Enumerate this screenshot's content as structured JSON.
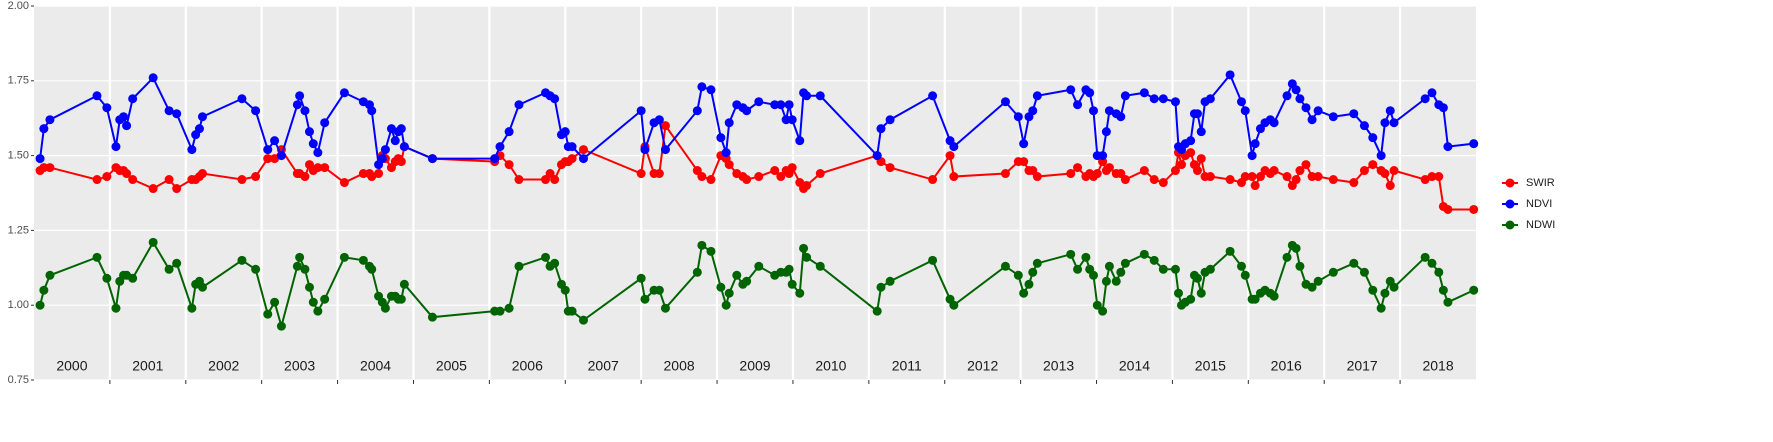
{
  "chart_data": {
    "type": "line",
    "x": [
      2000.08,
      2000.13,
      2000.21,
      2000.83,
      2000.96,
      2001.08,
      2001.13,
      2001.18,
      2001.22,
      2001.3,
      2001.57,
      2001.78,
      2001.88,
      2002.08,
      2002.13,
      2002.18,
      2002.22,
      2002.74,
      2002.92,
      2003.08,
      2003.17,
      2003.26,
      2003.47,
      2003.5,
      2003.57,
      2003.63,
      2003.68,
      2003.74,
      2003.83,
      2004.09,
      2004.34,
      2004.42,
      2004.45,
      2004.54,
      2004.59,
      2004.63,
      2004.71,
      2004.76,
      2004.8,
      2004.84,
      2004.88,
      2005.25,
      2006.07,
      2006.14,
      2006.26,
      2006.39,
      2006.74,
      2006.8,
      2006.86,
      2006.95,
      2007.0,
      2007.04,
      2007.09,
      2007.24,
      2008.0,
      2008.05,
      2008.17,
      2008.24,
      2008.32,
      2008.74,
      2008.8,
      2008.92,
      2009.05,
      2009.12,
      2009.16,
      2009.26,
      2009.34,
      2009.39,
      2009.55,
      2009.76,
      2009.84,
      2009.91,
      2009.95,
      2009.99,
      2010.09,
      2010.14,
      2010.18,
      2010.36,
      2011.11,
      2011.16,
      2011.28,
      2011.84,
      2012.07,
      2012.12,
      2012.8,
      2012.97,
      2013.04,
      2013.11,
      2013.16,
      2013.22,
      2013.66,
      2013.75,
      2013.86,
      2013.91,
      2013.96,
      2014.01,
      2014.08,
      2014.13,
      2014.17,
      2014.26,
      2014.32,
      2014.38,
      2014.63,
      2014.76,
      2014.88,
      2015.04,
      2015.08,
      2015.12,
      2015.17,
      2015.24,
      2015.29,
      2015.33,
      2015.38,
      2015.43,
      2015.5,
      2015.76,
      2015.91,
      2015.96,
      2016.05,
      2016.09,
      2016.16,
      2016.22,
      2016.29,
      2016.34,
      2016.51,
      2016.58,
      2016.63,
      2016.68,
      2016.76,
      2016.84,
      2016.92,
      2017.12,
      2017.39,
      2017.53,
      2017.64,
      2017.75,
      2017.8,
      2017.87,
      2017.92,
      2018.33,
      2018.42,
      2018.51,
      2018.57,
      2018.63,
      2018.97
    ],
    "series": [
      {
        "name": "SWIR",
        "color": "#ff0000",
        "values": [
          1.45,
          1.46,
          1.46,
          1.42,
          1.43,
          1.46,
          1.45,
          1.45,
          1.44,
          1.42,
          1.39,
          1.42,
          1.39,
          1.42,
          1.42,
          1.43,
          1.44,
          1.42,
          1.43,
          1.49,
          1.49,
          1.52,
          1.44,
          1.44,
          1.43,
          1.47,
          1.45,
          1.46,
          1.46,
          1.41,
          1.44,
          1.44,
          1.43,
          1.44,
          1.5,
          1.49,
          1.46,
          1.48,
          1.49,
          1.48,
          1.53,
          1.49,
          1.48,
          1.5,
          1.47,
          1.42,
          1.42,
          1.44,
          1.42,
          1.47,
          1.48,
          1.48,
          1.49,
          1.52,
          1.44,
          1.53,
          1.44,
          1.44,
          1.6,
          1.45,
          1.43,
          1.42,
          1.5,
          1.49,
          1.47,
          1.44,
          1.43,
          1.42,
          1.43,
          1.45,
          1.43,
          1.45,
          1.44,
          1.46,
          1.41,
          1.39,
          1.4,
          1.44,
          1.5,
          1.48,
          1.46,
          1.42,
          1.5,
          1.43,
          1.44,
          1.48,
          1.48,
          1.45,
          1.45,
          1.43,
          1.44,
          1.46,
          1.43,
          1.44,
          1.43,
          1.44,
          1.48,
          1.45,
          1.46,
          1.44,
          1.44,
          1.42,
          1.45,
          1.42,
          1.41,
          1.45,
          1.51,
          1.47,
          1.5,
          1.51,
          1.47,
          1.45,
          1.49,
          1.43,
          1.43,
          1.42,
          1.41,
          1.43,
          1.43,
          1.4,
          1.43,
          1.45,
          1.44,
          1.45,
          1.43,
          1.4,
          1.42,
          1.45,
          1.47,
          1.43,
          1.43,
          1.42,
          1.41,
          1.45,
          1.47,
          1.45,
          1.44,
          1.4,
          1.45,
          1.42,
          1.43,
          1.43,
          1.33,
          1.32,
          1.32
        ]
      },
      {
        "name": "NDVI",
        "color": "#0000ff",
        "values": [
          1.49,
          1.59,
          1.62,
          1.7,
          1.66,
          1.53,
          1.62,
          1.63,
          1.6,
          1.69,
          1.76,
          1.65,
          1.64,
          1.52,
          1.57,
          1.59,
          1.63,
          1.69,
          1.65,
          1.52,
          1.55,
          1.5,
          1.67,
          1.7,
          1.65,
          1.58,
          1.54,
          1.51,
          1.61,
          1.71,
          1.68,
          1.67,
          1.65,
          1.47,
          1.49,
          1.52,
          1.59,
          1.55,
          1.58,
          1.59,
          1.53,
          1.49,
          1.49,
          1.53,
          1.58,
          1.67,
          1.71,
          1.7,
          1.69,
          1.57,
          1.58,
          1.53,
          1.53,
          1.49,
          1.65,
          1.52,
          1.61,
          1.62,
          1.52,
          1.65,
          1.73,
          1.72,
          1.56,
          1.51,
          1.61,
          1.67,
          1.66,
          1.65,
          1.68,
          1.67,
          1.67,
          1.62,
          1.67,
          1.62,
          1.55,
          1.71,
          1.7,
          1.7,
          1.5,
          1.59,
          1.62,
          1.7,
          1.55,
          1.53,
          1.68,
          1.63,
          1.54,
          1.63,
          1.65,
          1.7,
          1.72,
          1.67,
          1.72,
          1.71,
          1.65,
          1.5,
          1.5,
          1.58,
          1.65,
          1.64,
          1.63,
          1.7,
          1.71,
          1.69,
          1.69,
          1.68,
          1.53,
          1.52,
          1.54,
          1.55,
          1.64,
          1.64,
          1.58,
          1.68,
          1.69,
          1.77,
          1.68,
          1.65,
          1.5,
          1.54,
          1.59,
          1.61,
          1.62,
          1.61,
          1.7,
          1.74,
          1.72,
          1.69,
          1.66,
          1.62,
          1.65,
          1.63,
          1.64,
          1.6,
          1.56,
          1.5,
          1.61,
          1.65,
          1.61,
          1.69,
          1.71,
          1.67,
          1.66,
          1.53,
          1.54
        ]
      },
      {
        "name": "NDWI",
        "color": "#006400",
        "values": [
          1.0,
          1.05,
          1.1,
          1.16,
          1.09,
          0.99,
          1.08,
          1.1,
          1.1,
          1.09,
          1.21,
          1.12,
          1.14,
          0.99,
          1.07,
          1.08,
          1.06,
          1.15,
          1.12,
          0.97,
          1.01,
          0.93,
          1.13,
          1.16,
          1.12,
          1.06,
          1.01,
          0.98,
          1.02,
          1.16,
          1.15,
          1.13,
          1.12,
          1.03,
          1.01,
          0.99,
          1.03,
          1.03,
          1.02,
          1.02,
          1.07,
          0.96,
          0.98,
          0.98,
          0.99,
          1.13,
          1.16,
          1.13,
          1.14,
          1.07,
          1.05,
          0.98,
          0.98,
          0.95,
          1.09,
          1.02,
          1.05,
          1.05,
          0.99,
          1.11,
          1.2,
          1.18,
          1.06,
          1.0,
          1.04,
          1.1,
          1.07,
          1.08,
          1.13,
          1.1,
          1.11,
          1.11,
          1.12,
          1.07,
          1.04,
          1.19,
          1.16,
          1.13,
          0.98,
          1.06,
          1.08,
          1.15,
          1.02,
          1.0,
          1.13,
          1.1,
          1.04,
          1.07,
          1.11,
          1.14,
          1.17,
          1.12,
          1.16,
          1.12,
          1.1,
          1.0,
          0.98,
          1.08,
          1.13,
          1.08,
          1.11,
          1.14,
          1.17,
          1.15,
          1.12,
          1.12,
          1.04,
          1.0,
          1.01,
          1.02,
          1.1,
          1.09,
          1.04,
          1.11,
          1.12,
          1.18,
          1.13,
          1.1,
          1.02,
          1.02,
          1.04,
          1.05,
          1.04,
          1.03,
          1.16,
          1.2,
          1.19,
          1.13,
          1.07,
          1.06,
          1.08,
          1.11,
          1.14,
          1.11,
          1.05,
          0.99,
          1.04,
          1.08,
          1.06,
          1.16,
          1.14,
          1.11,
          1.05,
          1.01,
          1.05
        ]
      }
    ],
    "xlim": [
      2000,
      2019
    ],
    "xticks": [
      2001,
      2002,
      2003,
      2004,
      2005,
      2006,
      2007,
      2008,
      2009,
      2010,
      2011,
      2012,
      2013,
      2014,
      2015,
      2016,
      2017,
      2018
    ],
    "year_labels": [
      "2000",
      "2001",
      "2002",
      "2003",
      "2004",
      "2005",
      "2006",
      "2007",
      "2008",
      "2009",
      "2010",
      "2011",
      "2012",
      "2013",
      "2014",
      "2015",
      "2016",
      "2017",
      "2018"
    ],
    "ylim": [
      0.75,
      2.0
    ],
    "yticks": [
      0.75,
      {
        "value": 1.0,
        "label": "1.00"
      },
      1.25,
      {
        "value": 1.5,
        "label": "1.50"
      },
      1.75,
      {
        "value": 2.0,
        "label": "2.00"
      }
    ],
    "grid": true,
    "legend": "right"
  }
}
